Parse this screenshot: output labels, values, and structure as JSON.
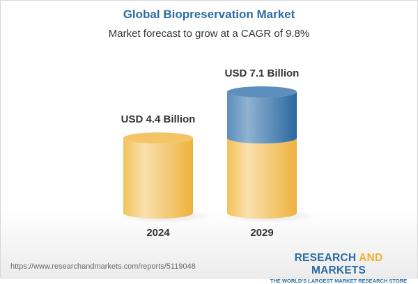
{
  "title": "Global Biopreservation Market",
  "subtitle": "Market forecast to grow at a CAGR of 9.8%",
  "chart_data": {
    "type": "bar",
    "style": "3d-cylinder",
    "categories": [
      "2024",
      "2029"
    ],
    "values": [
      4.4,
      7.1
    ],
    "data_labels": [
      "USD 4.4 Billion",
      "USD 7.1 Billion"
    ],
    "colors": {
      "base": "#f2c35a",
      "growth": "#4f86b8"
    },
    "grid": false
  },
  "footer": {
    "url": "https://www.researchandmarkets.com/reports/5119048",
    "logo_part1": "RESEARCH ",
    "logo_part2": "AND",
    "logo_part3": " MARKETS",
    "tagline": "THE WORLD'S LARGEST MARKET RESEARCH STORE"
  }
}
